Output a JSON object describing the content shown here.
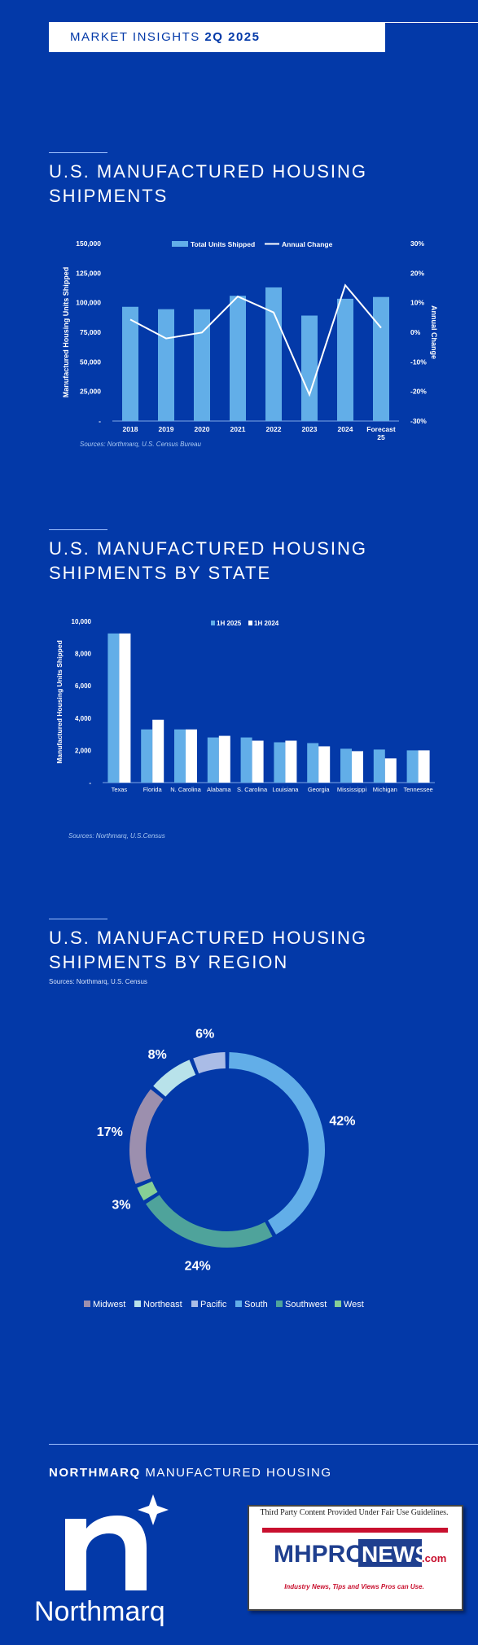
{
  "header": {
    "label": "MARKET INSIGHTS",
    "period": "2Q 2025"
  },
  "sections": {
    "shipments": {
      "title_line1": "U.S. MANUFACTURED HOUSING",
      "title_line2": "SHIPMENTS",
      "source": "Sources: Northmarq, U.S. Census Bureau"
    },
    "by_state": {
      "title_line1": "U.S. MANUFACTURED HOUSING",
      "title_line2": "SHIPMENTS BY STATE",
      "source": "Sources: Northmarq, U.S.Census"
    },
    "by_region": {
      "title_line1": "U.S. MANUFACTURED HOUSING",
      "title_line2": "SHIPMENTS BY REGION",
      "source": "Sources: Northmarq, U.S. Census"
    }
  },
  "footer": {
    "brand_bold": "NORTHMARQ",
    "brand_rest": "MANUFACTURED HOUSING",
    "logo_text": "Northmarq",
    "badge_caption": "Third Party Content Provided Under Fair Use Guidelines.",
    "badge_logo_mhpro": "MHPRO",
    "badge_logo_news": "NEWS",
    "badge_logo_com": ".com",
    "badge_tagline": "Industry News, Tips and Views Pros can Use."
  },
  "colors": {
    "background": "#0339A8",
    "bar": "#62AEE8",
    "line": "#FFFFFF"
  },
  "chart_data": [
    {
      "type": "bar",
      "categories": [
        "2018",
        "2019",
        "2020",
        "2021",
        "2022",
        "2023",
        "2024",
        "Forecast 25"
      ],
      "series": [
        {
          "name": "Total Units Shipped",
          "type": "bar",
          "axis": "left",
          "values": [
            96500,
            94500,
            94400,
            105800,
            112900,
            89100,
            103300,
            104800
          ]
        },
        {
          "name": "Annual Change",
          "type": "line",
          "axis": "right",
          "values": [
            4.3,
            -2.1,
            -0.1,
            12.1,
            6.7,
            -21.1,
            15.9,
            1.5
          ]
        }
      ],
      "y_left": {
        "label": "Manufactured Housing Units Shipped",
        "min": 0,
        "max": 150000,
        "ticks": [
          0,
          25000,
          50000,
          75000,
          100000,
          125000,
          150000
        ],
        "tick_labels": [
          "-",
          "25,000",
          "50,000",
          "75,000",
          "100,000",
          "125,000",
          "150,000"
        ]
      },
      "y_right": {
        "label": "Annual Change",
        "min": -30,
        "max": 30,
        "ticks": [
          -30,
          -20,
          -10,
          0,
          10,
          20,
          30
        ],
        "tick_labels": [
          "-30%",
          "-20%",
          "-10%",
          "0%",
          "10%",
          "20%",
          "30%"
        ]
      },
      "legend": "top-center",
      "grid": false
    },
    {
      "type": "bar",
      "categories": [
        "Texas",
        "Florida",
        "N. Carolina",
        "Alabama",
        "S. Carolina",
        "Louisiana",
        "Georgia",
        "Mississippi",
        "Michigan",
        "Tennessee"
      ],
      "series": [
        {
          "name": "1H 2025",
          "values": [
            9250,
            3300,
            3300,
            2800,
            2800,
            2500,
            2450,
            2100,
            2050,
            2000
          ]
        },
        {
          "name": "1H 2024",
          "values": [
            9250,
            3900,
            3300,
            2900,
            2600,
            2600,
            2250,
            1950,
            1500,
            2000
          ]
        }
      ],
      "y": {
        "label": "Manufactured Housing Units Shipped",
        "min": 0,
        "max": 10000,
        "ticks": [
          0,
          2000,
          4000,
          6000,
          8000,
          10000
        ],
        "tick_labels": [
          "-",
          "2,000",
          "4,000",
          "6,000",
          "8,000",
          "10,000"
        ]
      },
      "colors": [
        "#62AEE8",
        "#FFFFFF"
      ],
      "legend": "top-center",
      "grid": false
    },
    {
      "type": "pie",
      "donut": true,
      "slices": [
        {
          "name": "South",
          "value": 42,
          "label": "42%",
          "color": "#62AEE8"
        },
        {
          "name": "Southwest",
          "value": 24,
          "label": "24%",
          "color": "#4FA39B"
        },
        {
          "name": "West",
          "value": 3,
          "label": "3%",
          "color": "#86CE96"
        },
        {
          "name": "Midwest",
          "value": 17,
          "label": "17%",
          "color": "#9C8FAE"
        },
        {
          "name": "Northeast",
          "value": 8,
          "label": "8%",
          "color": "#B8E2EA"
        },
        {
          "name": "Pacific",
          "value": 6,
          "label": "6%",
          "color": "#AABCE6"
        }
      ],
      "legend_order": [
        "Midwest",
        "Northeast",
        "Pacific",
        "South",
        "Southwest",
        "West"
      ],
      "legend": "bottom-center"
    }
  ]
}
